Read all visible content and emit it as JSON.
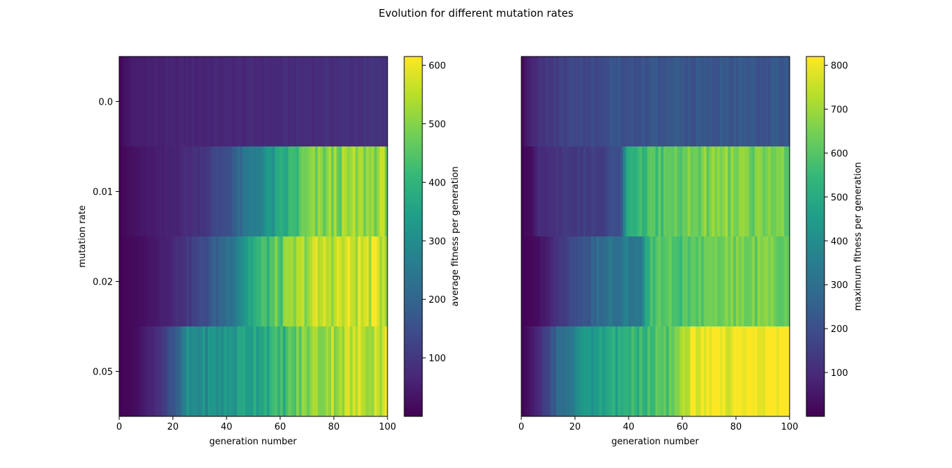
{
  "suptitle": "Evolution for different mutation rates",
  "colormap_stops": [
    "#440154",
    "#482878",
    "#3e4989",
    "#31688e",
    "#26828e",
    "#1f9e89",
    "#35b779",
    "#6ece58",
    "#b5de2b",
    "#fde725"
  ],
  "chart_data": [
    {
      "type": "heatmap",
      "xlabel": "generation number",
      "ylabel": "mutation rate",
      "xlim": [
        0,
        100
      ],
      "xticks": [
        0,
        20,
        40,
        60,
        80,
        100
      ],
      "rows": [
        "0.0",
        "0.01",
        "0.02",
        "0.05"
      ],
      "colorbar": {
        "label": "average fitness per generation",
        "min": 0,
        "max": 615,
        "ticks": [
          100,
          200,
          300,
          400,
          500,
          600
        ]
      },
      "series": [
        {
          "mutation_rate": "0.0",
          "anchors": [
            [
              0,
              5
            ],
            [
              2,
              30
            ],
            [
              6,
              50
            ],
            [
              20,
              60
            ],
            [
              50,
              70
            ],
            [
              75,
              80
            ],
            [
              100,
              90
            ]
          ]
        },
        {
          "mutation_rate": "0.01",
          "anchors": [
            [
              0,
              5
            ],
            [
              3,
              20
            ],
            [
              10,
              40
            ],
            [
              20,
              60
            ],
            [
              30,
              90
            ],
            [
              40,
              150
            ],
            [
              50,
              260
            ],
            [
              60,
              350
            ],
            [
              70,
              470
            ],
            [
              80,
              500
            ],
            [
              100,
              520
            ]
          ]
        },
        {
          "mutation_rate": "0.02",
          "anchors": [
            [
              0,
              5
            ],
            [
              5,
              15
            ],
            [
              10,
              30
            ],
            [
              20,
              70
            ],
            [
              30,
              130
            ],
            [
              40,
              220
            ],
            [
              50,
              380
            ],
            [
              60,
              460
            ],
            [
              70,
              540
            ],
            [
              80,
              560
            ],
            [
              100,
              570
            ]
          ]
        },
        {
          "mutation_rate": "0.05",
          "anchors": [
            [
              0,
              5
            ],
            [
              5,
              15
            ],
            [
              10,
              50
            ],
            [
              15,
              90
            ],
            [
              22,
              180
            ],
            [
              25,
              290
            ],
            [
              40,
              320
            ],
            [
              50,
              370
            ],
            [
              60,
              400
            ],
            [
              70,
              500
            ],
            [
              80,
              540
            ],
            [
              100,
              570
            ]
          ]
        }
      ]
    },
    {
      "type": "heatmap",
      "xlabel": "generation number",
      "xlim": [
        0,
        100
      ],
      "xticks": [
        0,
        20,
        40,
        60,
        80,
        100
      ],
      "rows": [
        "0.0",
        "0.01",
        "0.02",
        "0.05"
      ],
      "colorbar": {
        "label": "maximum fitness per generation",
        "min": 0,
        "max": 820,
        "ticks": [
          100,
          200,
          300,
          400,
          500,
          600,
          700,
          800
        ]
      },
      "series": [
        {
          "mutation_rate": "0.0",
          "anchors": [
            [
              0,
              5
            ],
            [
              2,
              60
            ],
            [
              7,
              120
            ],
            [
              15,
              160
            ],
            [
              30,
              200
            ],
            [
              60,
              220
            ],
            [
              100,
              220
            ]
          ]
        },
        {
          "mutation_rate": "0.01",
          "anchors": [
            [
              0,
              5
            ],
            [
              4,
              30
            ],
            [
              6,
              100
            ],
            [
              15,
              130
            ],
            [
              30,
              160
            ],
            [
              37,
              200
            ],
            [
              40,
              500
            ],
            [
              50,
              580
            ],
            [
              60,
              640
            ],
            [
              75,
              660
            ],
            [
              100,
              640
            ]
          ]
        },
        {
          "mutation_rate": "0.02",
          "anchors": [
            [
              0,
              5
            ],
            [
              5,
              20
            ],
            [
              12,
              100
            ],
            [
              20,
              200
            ],
            [
              30,
              280
            ],
            [
              40,
              340
            ],
            [
              45,
              360
            ],
            [
              48,
              580
            ],
            [
              60,
              600
            ],
            [
              80,
              650
            ],
            [
              100,
              640
            ]
          ]
        },
        {
          "mutation_rate": "0.05",
          "anchors": [
            [
              0,
              5
            ],
            [
              3,
              40
            ],
            [
              8,
              140
            ],
            [
              15,
              300
            ],
            [
              23,
              420
            ],
            [
              40,
              520
            ],
            [
              55,
              600
            ],
            [
              60,
              700
            ],
            [
              63,
              800
            ],
            [
              100,
              810
            ]
          ]
        }
      ]
    }
  ]
}
